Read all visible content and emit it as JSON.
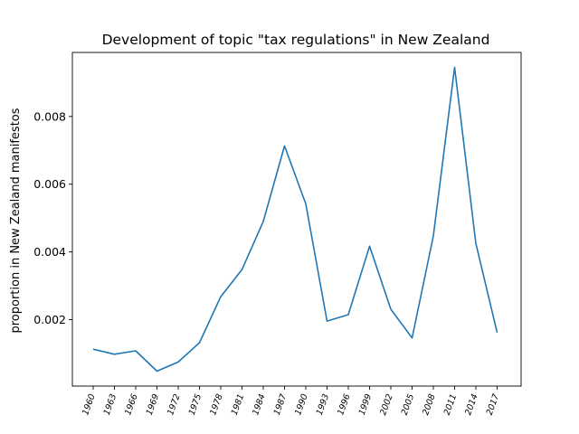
{
  "chart_data": {
    "type": "line",
    "title": "Development of topic \"tax regulations\" in New Zealand",
    "xlabel": "",
    "ylabel": "proportion in New Zealand manifestos",
    "x": [
      "1960",
      "1963",
      "1966",
      "1969",
      "1972",
      "1975",
      "1978",
      "1981",
      "1984",
      "1987",
      "1990",
      "1993",
      "1996",
      "1999",
      "2002",
      "2005",
      "2008",
      "2011",
      "2014",
      "2017"
    ],
    "series": [
      {
        "values": [
          0.00113,
          0.00098,
          0.00108,
          0.00048,
          0.00075,
          0.00132,
          0.00268,
          0.00348,
          0.0049,
          0.00713,
          0.00542,
          0.00196,
          0.00215,
          0.00417,
          0.00231,
          0.00146,
          0.00447,
          0.00945,
          0.00425,
          0.00162
        ],
        "color": "#1f77b4"
      }
    ],
    "ylim": [
      4e-05,
      0.00989
    ],
    "yticks": [
      0.002,
      0.004,
      0.006,
      0.008
    ],
    "ytick_labels": [
      "0.002",
      "0.004",
      "0.006",
      "0.008"
    ],
    "grid": false,
    "legend": "none"
  }
}
